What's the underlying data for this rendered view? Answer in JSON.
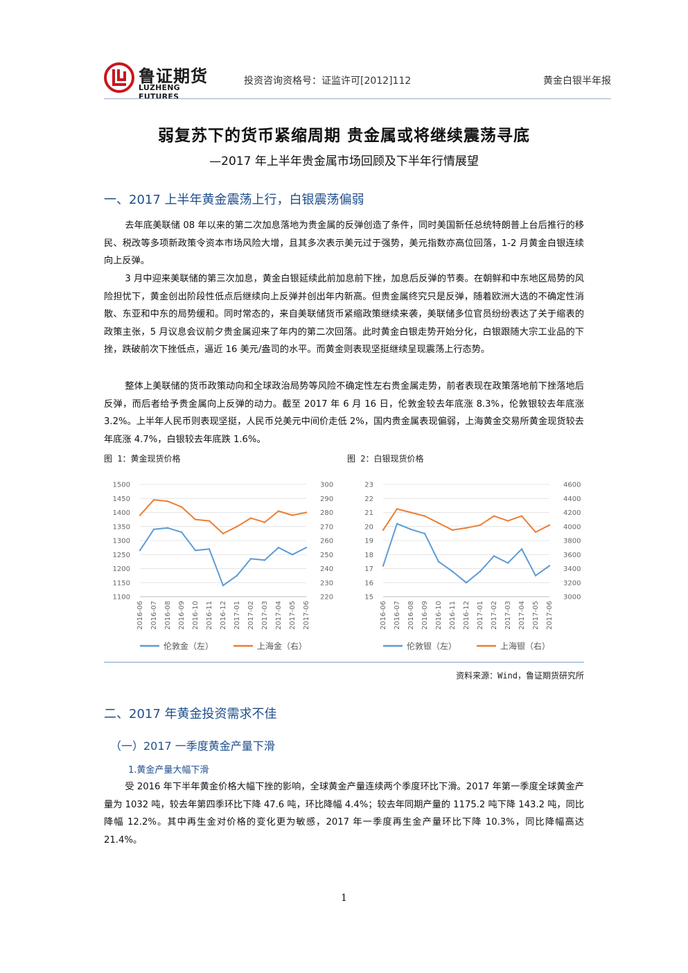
{
  "header": {
    "logo_cn": "鲁证期货",
    "logo_en": "LUZHENG FUTURES",
    "license": "投资咨询资格号：证监许可[2012]112",
    "report_type": "黄金白银半年报",
    "brand_color": "#c8161d"
  },
  "title": "弱复苏下的货币紧缩周期 贵金属或将继续震荡寻底",
  "subtitle": "—2017 年上半年贵金属市场回顾及下半年行情展望",
  "section1": {
    "heading": "一、2017 上半年黄金震荡上行，白银震荡偏弱",
    "p1": "去年底美联储 08 年以来的第二次加息落地为贵金属的反弹创造了条件，同时美国新任总统特朗普上台后推行的移民、税改等多项新政策令资本市场风险大增，且其多次表示美元过于强势，美元指数亦高位回落，1-2 月黄金白银连续向上反弹。",
    "p2": "3 月中迎来美联储的第三次加息，黄金白银延续此前加息前下挫，加息后反弹的节奏。在朝鲜和中东地区局势的风险担忧下，黄金创出阶段性低点后继续向上反弹并创出年内新高。但贵金属终究只是反弹，随着欧洲大选的不确定性消散、东亚和中东的局势缓和。同时常态的，来自美联储货币紧缩政策继续来袭，美联储多位官员纷纷表达了关于缩表的政策主张，5 月议息会议前夕贵金属迎来了年内的第二次回落。此时黄金白银走势开始分化，白银跟随大宗工业品的下挫，跌破前次下挫低点，逼近 16 美元/盎司的水平。而黄金则表现坚挺继续呈现震荡上行态势。",
    "p3": "整体上美联储的货币政策动向和全球政治局势等风险不确定性左右贵金属走势，前者表现在政策落地前下挫落地后反弹，而后者给予贵金属向上反弹的动力。截至 2017 年 6 月 16 日，伦敦金较去年底涨 8.3%，伦敦银较去年底涨 3.2%。上半年人民币则表现坚挺，人民币兑美元中间价走低 2%，国内贵金属表现偏弱，上海黄金交易所黄金现货较去年底涨 4.7%，白银较去年底跌 1.6%。"
  },
  "figures": {
    "fig1_caption": "图 1：黄金现货价格",
    "fig2_caption": "图 2：白银现货价格",
    "source": "资料来源：Wind，鲁证期货研究所"
  },
  "chart_data": [
    {
      "type": "line",
      "x_labels": [
        "2016-06",
        "2016-07",
        "2016-08",
        "2016-09",
        "2016-10",
        "2016-11",
        "2016-12",
        "2017-01",
        "2017-02",
        "2017-03",
        "2017-04",
        "2017-05",
        "2017-06"
      ],
      "series": [
        {
          "name": "伦敦金（左）",
          "axis": "left",
          "color": "#5b9bd5",
          "values": [
            1265,
            1340,
            1345,
            1330,
            1265,
            1270,
            1140,
            1175,
            1235,
            1230,
            1275,
            1250,
            1275
          ]
        },
        {
          "name": "上海金（右）",
          "axis": "right",
          "color": "#ed7d31",
          "values": [
            278,
            289,
            288,
            284,
            275,
            274,
            265,
            270,
            276,
            273,
            281,
            278,
            280
          ]
        }
      ],
      "ylim_left": [
        1100,
        1500
      ],
      "yticks_left": [
        1100,
        1150,
        1200,
        1250,
        1300,
        1350,
        1400,
        1450,
        1500
      ],
      "ylim_right": [
        220,
        300
      ],
      "yticks_right": [
        220,
        230,
        240,
        250,
        260,
        270,
        280,
        290,
        300
      ],
      "legend": "bottom"
    },
    {
      "type": "line",
      "x_labels": [
        "2016-06",
        "2016-07",
        "2016-08",
        "2016-09",
        "2016-10",
        "2016-11",
        "2016-12",
        "2017-01",
        "2017-02",
        "2017-03",
        "2017-04",
        "2017-05",
        "2017-06"
      ],
      "series": [
        {
          "name": "伦敦银（左）",
          "axis": "left",
          "color": "#5b9bd5",
          "values": [
            17.2,
            20.2,
            19.8,
            19.5,
            17.5,
            16.8,
            16.0,
            16.8,
            17.9,
            17.4,
            18.4,
            16.5,
            17.2
          ]
        },
        {
          "name": "上海银（右）",
          "axis": "right",
          "color": "#ed7d31",
          "values": [
            3950,
            4250,
            4200,
            4150,
            4050,
            3950,
            3980,
            4020,
            4150,
            4080,
            4150,
            3920,
            4020
          ]
        }
      ],
      "ylim_left": [
        15,
        23
      ],
      "yticks_left": [
        15,
        16,
        17,
        18,
        19,
        20,
        21,
        22,
        23
      ],
      "ylim_right": [
        3000,
        4600
      ],
      "yticks_right": [
        3000,
        3200,
        3400,
        3600,
        3800,
        4000,
        4200,
        4400,
        4600
      ],
      "legend": "bottom"
    }
  ],
  "section2": {
    "heading": "二、2017 年黄金投资需求不佳",
    "sub1": "（一）2017 一季度黄金产量下滑",
    "sub1_1": "1.黄金产量大幅下滑",
    "p1": "受 2016 年下半年黄金价格大幅下挫的影响，全球黄金产量连续两个季度环比下滑。2017 年第一季度全球黄金产量为 1032 吨，较去年第四季环比下降 47.6 吨，环比降幅 4.4%；较去年同期产量的 1175.2 吨下降 143.2 吨，同比降幅 12.2%。其中再生金对价格的变化更为敏感，2017 年一季度再生金产量环比下降 10.3%，同比降幅高达 21.4%。"
  },
  "page_number": "1"
}
